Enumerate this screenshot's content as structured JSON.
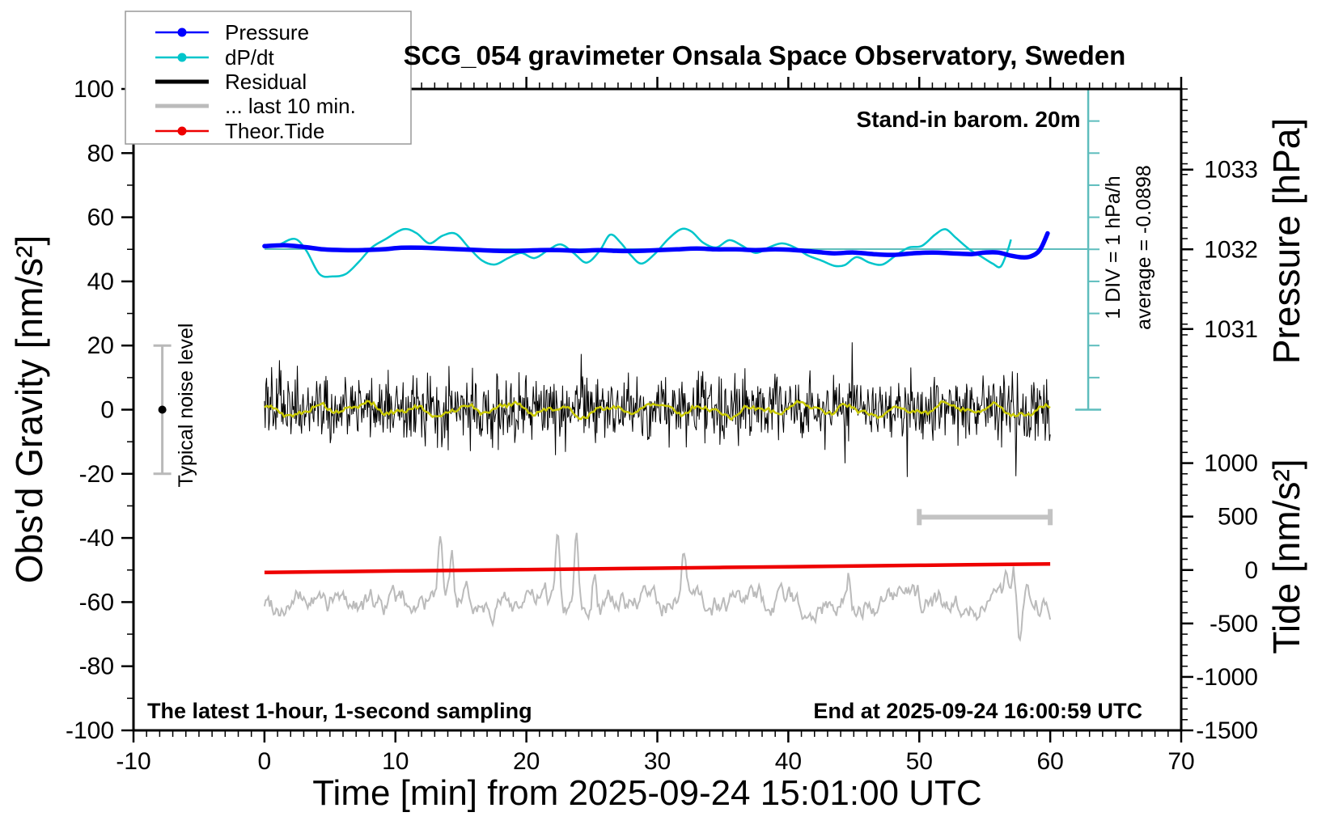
{
  "title": "SCG_054 gravimeter Onsala Space Observatory, Sweden",
  "annotations": {
    "stand_in": "Stand-in barom. 20m",
    "div_scale": "1 DIV = 1 hPa/h",
    "average": "average = -0.0898",
    "noise_level": "Typical noise level",
    "sampling": "The latest 1-hour, 1-second sampling",
    "end_time": "End at 2025-09-24 16:00:59 UTC"
  },
  "legend": {
    "items": [
      {
        "label": "Pressure",
        "color": "#0000ff",
        "style": "dot-line"
      },
      {
        "label": "dP/dt",
        "color": "#00c5cb",
        "style": "dot-line"
      },
      {
        "label": "Residual",
        "color": "#000000",
        "style": "thick-line"
      },
      {
        "label": "... last 10 min.",
        "color": "#bbbbbb",
        "style": "thick-line"
      },
      {
        "label": "Theor.Tide",
        "color": "#ee0000",
        "style": "dot-line"
      }
    ]
  },
  "chart_data": {
    "type": "line",
    "title": "SCG_054 gravimeter Onsala Space Observatory, Sweden",
    "axes": {
      "bottom": {
        "title": "Time [min] from 2025-09-24 15:01:00 UTC",
        "range": [
          -10,
          70
        ],
        "major": 10,
        "minor": 1
      },
      "left": {
        "title": "Obs'd Gravity [nm/s²]",
        "range": [
          -100,
          100
        ],
        "major": 20,
        "minor": 10
      },
      "right_pressure": {
        "title": "Pressure [hPa]",
        "ticks": [
          1031,
          1032,
          1033
        ]
      },
      "right_tide": {
        "title": "Tide [nm/s²]",
        "ticks": [
          -1500,
          -1000,
          -500,
          0,
          500,
          1000
        ],
        "minor": 100
      }
    },
    "series": [
      {
        "name": "Pressure",
        "unit": "hPa",
        "color": "#0000ff",
        "points": [
          [
            0,
            1032.04
          ],
          [
            1.5,
            1032.05
          ],
          [
            3,
            1032.03
          ],
          [
            4.5,
            1032.0
          ],
          [
            6,
            1031.99
          ],
          [
            7.5,
            1031.99
          ],
          [
            9,
            1032.0
          ],
          [
            10.5,
            1032.02
          ],
          [
            12,
            1032.02
          ],
          [
            13.5,
            1032.01
          ],
          [
            15,
            1032.0
          ],
          [
            16.5,
            1031.99
          ],
          [
            18,
            1031.98
          ],
          [
            19.5,
            1031.98
          ],
          [
            21,
            1031.99
          ],
          [
            22.5,
            1031.99
          ],
          [
            24,
            1031.98
          ],
          [
            25.5,
            1031.99
          ],
          [
            27,
            1031.98
          ],
          [
            28.5,
            1031.98
          ],
          [
            30,
            1031.99
          ],
          [
            31.5,
            1032.0
          ],
          [
            33,
            1032.01
          ],
          [
            34.5,
            1032.0
          ],
          [
            36,
            1032.0
          ],
          [
            37.5,
            1031.99
          ],
          [
            39,
            1032.0
          ],
          [
            40.5,
            1031.99
          ],
          [
            42,
            1031.97
          ],
          [
            43.5,
            1031.95
          ],
          [
            45,
            1031.96
          ],
          [
            46.5,
            1031.94
          ],
          [
            48,
            1031.93
          ],
          [
            49.5,
            1031.95
          ],
          [
            51,
            1031.96
          ],
          [
            52.5,
            1031.95
          ],
          [
            54,
            1031.94
          ],
          [
            55,
            1031.96
          ],
          [
            56,
            1031.96
          ],
          [
            57,
            1031.92
          ],
          [
            57.8,
            1031.9
          ],
          [
            58.5,
            1031.91
          ],
          [
            59.2,
            1031.99
          ],
          [
            59.8,
            1032.2
          ]
        ]
      },
      {
        "name": "dP/dt",
        "unit": "hPa/h",
        "color": "#00c5cb",
        "average_hpa_per_h": -0.0898,
        "points": [
          [
            0,
            0.05
          ],
          [
            1,
            0.12
          ],
          [
            2.3,
            0.32
          ],
          [
            3.2,
            -0.05
          ],
          [
            4.2,
            -0.78
          ],
          [
            5.2,
            -0.85
          ],
          [
            6.2,
            -0.78
          ],
          [
            7.2,
            -0.4
          ],
          [
            8.2,
            0.05
          ],
          [
            9.2,
            0.3
          ],
          [
            10.6,
            0.62
          ],
          [
            11.6,
            0.5
          ],
          [
            12.6,
            0.18
          ],
          [
            13.6,
            0.42
          ],
          [
            14.6,
            0.48
          ],
          [
            15.6,
            0.05
          ],
          [
            16.6,
            -0.35
          ],
          [
            17.6,
            -0.48
          ],
          [
            18.6,
            -0.28
          ],
          [
            19.6,
            -0.12
          ],
          [
            20.6,
            -0.28
          ],
          [
            21.6,
            -0.05
          ],
          [
            22.6,
            0.15
          ],
          [
            23.6,
            -0.12
          ],
          [
            24.6,
            -0.42
          ],
          [
            25.6,
            -0.05
          ],
          [
            26.4,
            0.45
          ],
          [
            27.2,
            0.2
          ],
          [
            28,
            -0.2
          ],
          [
            28.8,
            -0.45
          ],
          [
            29.8,
            -0.15
          ],
          [
            30.8,
            0.3
          ],
          [
            31.8,
            0.62
          ],
          [
            32.6,
            0.55
          ],
          [
            33.5,
            0.2
          ],
          [
            34.5,
            0.05
          ],
          [
            35.5,
            0.28
          ],
          [
            36.5,
            0.1
          ],
          [
            37.5,
            -0.12
          ],
          [
            38.5,
            0.05
          ],
          [
            39.5,
            0.18
          ],
          [
            40.5,
            0.05
          ],
          [
            41.5,
            -0.2
          ],
          [
            42.5,
            -0.35
          ],
          [
            43.5,
            -0.52
          ],
          [
            44.3,
            -0.5
          ],
          [
            45.2,
            -0.25
          ],
          [
            46.2,
            -0.42
          ],
          [
            47.2,
            -0.48
          ],
          [
            48.2,
            -0.2
          ],
          [
            49.2,
            0.05
          ],
          [
            50.2,
            0.1
          ],
          [
            51.2,
            0.45
          ],
          [
            52,
            0.62
          ],
          [
            52.8,
            0.35
          ],
          [
            53.8,
            0.0
          ],
          [
            54.8,
            -0.25
          ],
          [
            55.6,
            -0.45
          ],
          [
            56.2,
            -0.55
          ],
          [
            56.7,
            -0.1
          ],
          [
            57,
            0.3
          ]
        ]
      },
      {
        "name": "Residual",
        "unit": "nm/s²",
        "color": "#000000",
        "generator": {
          "mean": 0,
          "sigma": 5,
          "max_abs": 21,
          "n": 1100,
          "seed": 12345,
          "t_range": [
            0,
            60
          ]
        }
      },
      {
        "name": "Residual smoothed",
        "unit": "nm/s²",
        "color": "#c9c900",
        "generator": {
          "mean": 0,
          "amp": 1.3,
          "seed": 5,
          "t_range": [
            0,
            60
          ]
        }
      },
      {
        "name": "... last 10 min.",
        "unit": "nm/s² (gravity axis)",
        "color": "#bbbbbb",
        "generator": {
          "center": -60,
          "amp": 2.8,
          "n": 600,
          "seed": 99,
          "t_range": [
            0,
            60
          ],
          "spikes": [
            [
              13.4,
              15
            ],
            [
              14.3,
              13
            ],
            [
              22.4,
              24
            ],
            [
              23.8,
              22
            ],
            [
              25.2,
              12
            ],
            [
              32,
              12
            ],
            [
              44.6,
              9
            ],
            [
              56.6,
              8
            ],
            [
              57.2,
              13
            ],
            [
              57.7,
              -13
            ]
          ]
        }
      },
      {
        "name": "Theor.Tide",
        "unit": "nm/s² (tide axis)",
        "color": "#ee0000",
        "points": [
          [
            0,
            -22
          ],
          [
            10,
            -9
          ],
          [
            20,
            4
          ],
          [
            30,
            17
          ],
          [
            40,
            31
          ],
          [
            50,
            44
          ],
          [
            60,
            57
          ]
        ]
      }
    ],
    "guides": {
      "dpdt_zero_line": {
        "gravity": 50.06,
        "t_start": 0,
        "t_end": 62.9,
        "color": "#5ebdbd"
      },
      "div_scale_bar": {
        "x_time": 62.9,
        "top_gravity": 100,
        "bottom_gravity": 0,
        "divisions": 10,
        "color": "#5ebdbd"
      },
      "last10_window_bar": {
        "t_start": 50,
        "t_end": 60,
        "gravity": -33.5,
        "color": "#c3c3c3"
      },
      "noise_error_bar": {
        "t": -7.8,
        "gravity_center": 0,
        "gravity_halfspan": 20,
        "color": "#b9b9b9"
      }
    }
  }
}
